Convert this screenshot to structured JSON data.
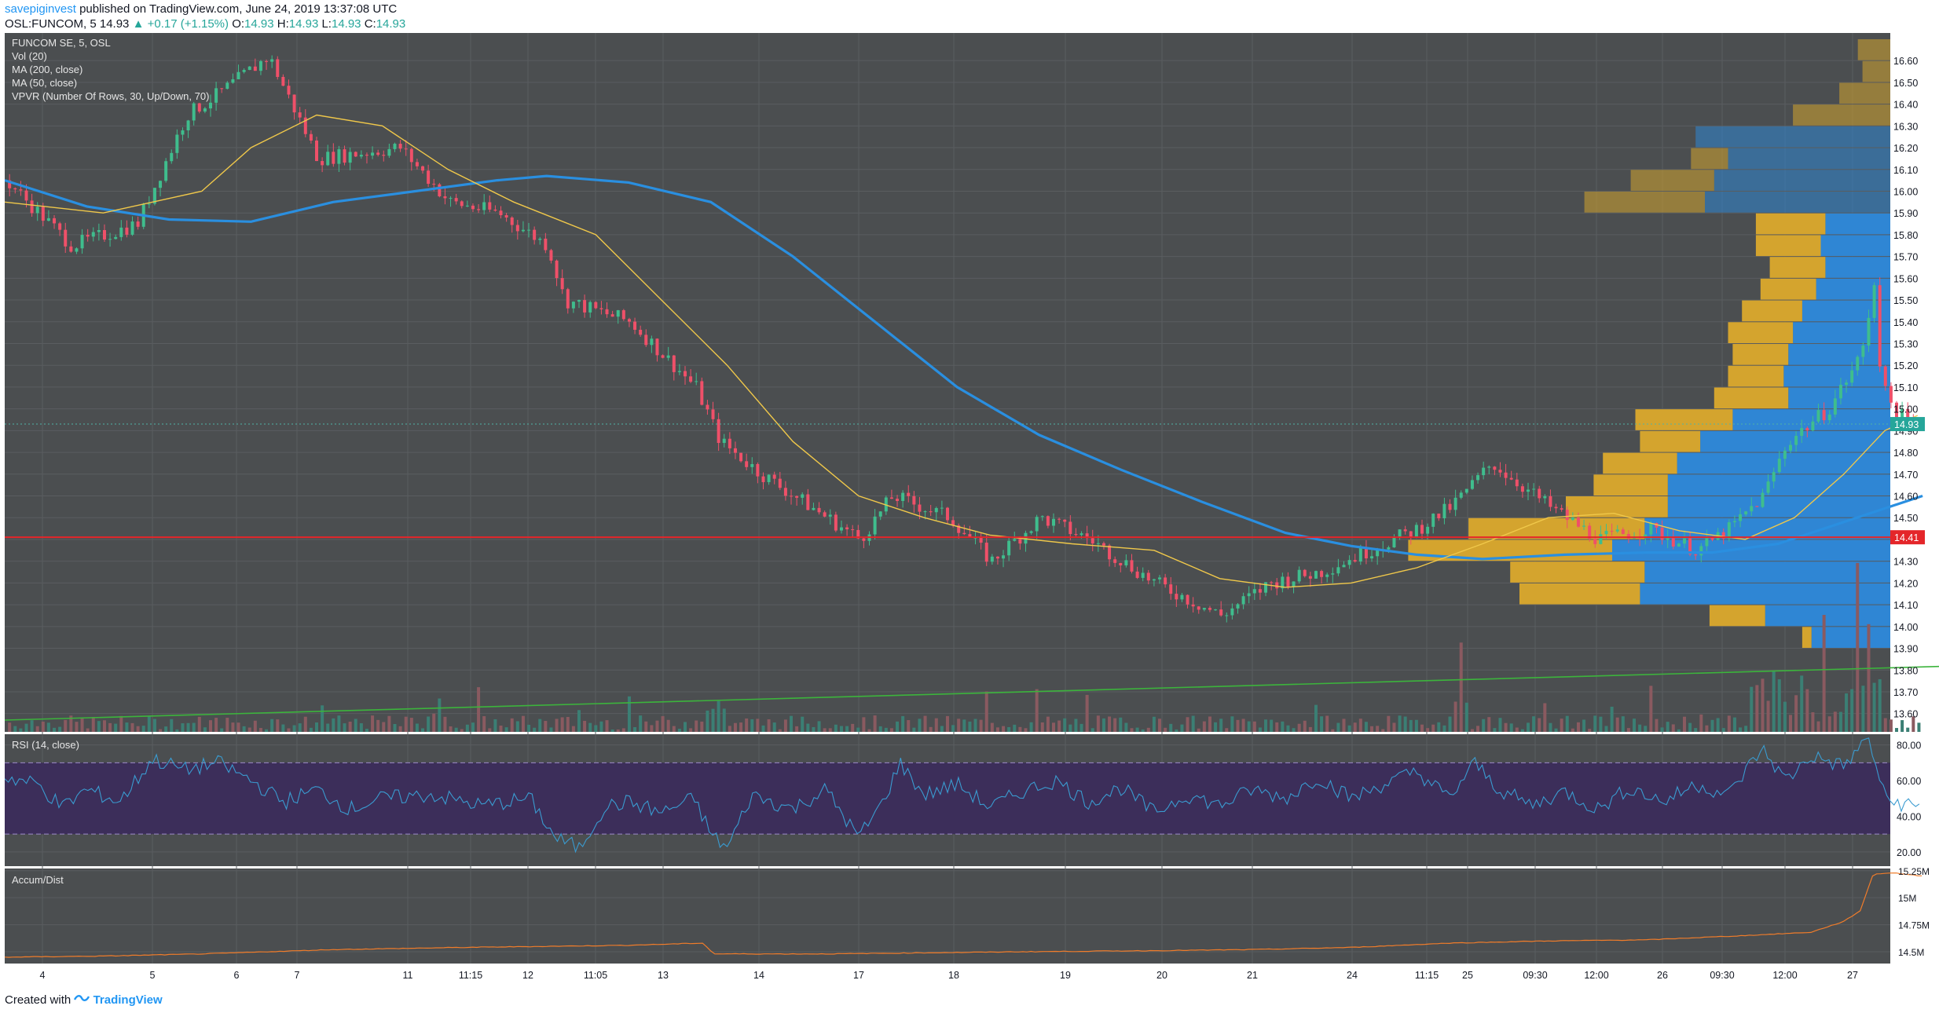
{
  "header": {
    "username": "savepiginvest",
    "published_text": "published on TradingView.com, June 24, 2019 13:37:08 UTC",
    "symbol": "OSL:FUNCOM, 5",
    "last": "14.93",
    "arrow": "▲",
    "change": "+0.17 (+1.15%)",
    "o_label": "O:",
    "o": "14.93",
    "h_label": "H:",
    "h": "14.93",
    "l_label": "L:",
    "l": "14.93",
    "c_label": "C:",
    "c": "14.93"
  },
  "legend": {
    "title": "FUNCOM SE, 5, OSL",
    "vol": "Vol (20)",
    "ma200": "MA (200, close)",
    "ma50": "MA (50, close)",
    "vpvr": "VPVR (Number Of Rows, 30, Up/Down, 70)"
  },
  "panes": {
    "rsi_title": "RSI (14, close)",
    "accum_title": "Accum/Dist"
  },
  "footer": {
    "created_with": "Created with",
    "brand": "TradingView"
  },
  "colors": {
    "background": "#4b4e50",
    "grid": "#5a5d60",
    "candle_up": "#3fbd8d",
    "candle_down": "#ef5069",
    "ma50": "#f0c84a",
    "ma200": "#2a8fe0",
    "hline": "#e4262a",
    "trendline": "#3cb43c",
    "rsi_band": "#3c2e5a",
    "rsi_line": "#3a9bd0",
    "accum_line": "#f07c2a",
    "vpvr_up": "#2f86d4",
    "vpvr_down": "#d4a42e",
    "price_tag_last": "#26a69a",
    "price_tag_hline": "#e4262a"
  },
  "chart_data": [
    {
      "type": "candlestick",
      "title": "FUNCOM SE, 5, OSL",
      "y_ticks": [
        "16.60",
        "16.50",
        "16.40",
        "16.30",
        "16.20",
        "16.10",
        "16.00",
        "15.90",
        "15.80",
        "15.70",
        "15.60",
        "15.50",
        "15.40",
        "15.30",
        "15.20",
        "15.10",
        "15.00",
        "14.90",
        "14.80",
        "14.70",
        "14.60",
        "14.50",
        "14.40",
        "14.30",
        "14.20",
        "14.10",
        "14.00",
        "13.90",
        "13.80",
        "13.70",
        "13.60"
      ],
      "ylim": [
        13.57,
        16.68
      ],
      "x_ticks": [
        "4",
        "5",
        "6",
        "7",
        "11",
        "11:15",
        "12",
        "11:05",
        "13",
        "14",
        "17",
        "18",
        "19",
        "20",
        "21",
        "24",
        "11:15",
        "25",
        "09:30",
        "12:00",
        "26",
        "09:30",
        "12:00",
        "27"
      ],
      "last_price": "14.93",
      "last_price_value": 14.93,
      "horizontal_line": "14.41",
      "horizontal_line_value": 14.41,
      "price_path": [
        [
          0,
          16.05
        ],
        [
          40,
          15.75
        ],
        [
          80,
          15.85
        ],
        [
          110,
          16.35
        ],
        [
          130,
          16.45
        ],
        [
          160,
          16.62
        ],
        [
          190,
          16.15
        ],
        [
          240,
          16.2
        ],
        [
          270,
          15.95
        ],
        [
          300,
          15.9
        ],
        [
          330,
          15.75
        ],
        [
          340,
          15.5
        ],
        [
          380,
          15.4
        ],
        [
          420,
          15.1
        ],
        [
          435,
          14.85
        ],
        [
          460,
          14.7
        ],
        [
          500,
          14.5
        ],
        [
          520,
          14.4
        ],
        [
          540,
          14.6
        ],
        [
          575,
          14.5
        ],
        [
          600,
          14.3
        ],
        [
          630,
          14.5
        ],
        [
          660,
          14.4
        ],
        [
          700,
          14.2
        ],
        [
          740,
          14.05
        ],
        [
          770,
          14.2
        ],
        [
          800,
          14.25
        ],
        [
          830,
          14.35
        ],
        [
          860,
          14.45
        ],
        [
          880,
          14.55
        ],
        [
          905,
          14.75
        ],
        [
          940,
          14.55
        ],
        [
          970,
          14.4
        ],
        [
          1000,
          14.45
        ],
        [
          1030,
          14.35
        ],
        [
          1050,
          14.45
        ],
        [
          1070,
          14.6
        ],
        [
          1085,
          14.85
        ],
        [
          1110,
          15.0
        ],
        [
          1130,
          15.25
        ],
        [
          1138,
          15.6
        ],
        [
          1142,
          15.1
        ],
        [
          1150,
          15.0
        ],
        [
          1160,
          14.93
        ]
      ],
      "ma50": [
        [
          0,
          15.95
        ],
        [
          60,
          15.9
        ],
        [
          120,
          16.0
        ],
        [
          150,
          16.2
        ],
        [
          190,
          16.35
        ],
        [
          230,
          16.3
        ],
        [
          270,
          16.1
        ],
        [
          310,
          15.95
        ],
        [
          360,
          15.8
        ],
        [
          400,
          15.5
        ],
        [
          440,
          15.2
        ],
        [
          480,
          14.85
        ],
        [
          520,
          14.6
        ],
        [
          560,
          14.5
        ],
        [
          600,
          14.42
        ],
        [
          650,
          14.38
        ],
        [
          700,
          14.35
        ],
        [
          740,
          14.22
        ],
        [
          780,
          14.18
        ],
        [
          820,
          14.2
        ],
        [
          860,
          14.27
        ],
        [
          900,
          14.38
        ],
        [
          940,
          14.5
        ],
        [
          980,
          14.52
        ],
        [
          1020,
          14.44
        ],
        [
          1060,
          14.4
        ],
        [
          1090,
          14.5
        ],
        [
          1120,
          14.7
        ],
        [
          1145,
          14.9
        ],
        [
          1165,
          14.97
        ]
      ],
      "ma200": [
        [
          0,
          16.05
        ],
        [
          50,
          15.93
        ],
        [
          100,
          15.87
        ],
        [
          150,
          15.86
        ],
        [
          200,
          15.95
        ],
        [
          250,
          16.0
        ],
        [
          300,
          16.05
        ],
        [
          330,
          16.07
        ],
        [
          380,
          16.04
        ],
        [
          430,
          15.95
        ],
        [
          480,
          15.7
        ],
        [
          530,
          15.4
        ],
        [
          580,
          15.1
        ],
        [
          630,
          14.88
        ],
        [
          680,
          14.72
        ],
        [
          730,
          14.57
        ],
        [
          780,
          14.43
        ],
        [
          820,
          14.37
        ],
        [
          860,
          14.33
        ],
        [
          900,
          14.31
        ],
        [
          950,
          14.33
        ],
        [
          1000,
          14.34
        ],
        [
          1040,
          14.34
        ],
        [
          1080,
          14.38
        ],
        [
          1120,
          14.48
        ],
        [
          1168,
          14.6
        ]
      ],
      "trendline": [
        [
          0,
          13.57
        ],
        [
          1530,
          13.89
        ]
      ],
      "vpvr_rows": [
        {
          "price": 16.65,
          "up": 0.0,
          "down": 0.07
        },
        {
          "price": 16.55,
          "up": 0.0,
          "down": 0.06
        },
        {
          "price": 16.45,
          "up": 0.0,
          "down": 0.11
        },
        {
          "price": 16.35,
          "up": 0.0,
          "down": 0.21
        },
        {
          "price": 16.25,
          "up": 0.42,
          "down": 0.0
        },
        {
          "price": 16.15,
          "up": 0.35,
          "down": 0.08
        },
        {
          "price": 16.05,
          "up": 0.38,
          "down": 0.18
        },
        {
          "price": 15.95,
          "up": 0.4,
          "down": 0.26
        },
        {
          "price": 15.85,
          "up": 0.14,
          "down": 0.15
        },
        {
          "price": 15.75,
          "up": 0.15,
          "down": 0.14
        },
        {
          "price": 15.65,
          "up": 0.14,
          "down": 0.12
        },
        {
          "price": 15.55,
          "up": 0.16,
          "down": 0.12
        },
        {
          "price": 15.45,
          "up": 0.19,
          "down": 0.13
        },
        {
          "price": 15.35,
          "up": 0.21,
          "down": 0.14
        },
        {
          "price": 15.25,
          "up": 0.22,
          "down": 0.12
        },
        {
          "price": 15.15,
          "up": 0.23,
          "down": 0.12
        },
        {
          "price": 15.05,
          "up": 0.22,
          "down": 0.16
        },
        {
          "price": 14.95,
          "up": 0.34,
          "down": 0.21
        },
        {
          "price": 14.85,
          "up": 0.41,
          "down": 0.13
        },
        {
          "price": 14.75,
          "up": 0.46,
          "down": 0.16
        },
        {
          "price": 14.65,
          "up": 0.48,
          "down": 0.16
        },
        {
          "price": 14.55,
          "up": 0.48,
          "down": 0.22
        },
        {
          "price": 14.45,
          "up": 0.53,
          "down": 0.38
        },
        {
          "price": 14.35,
          "up": 0.6,
          "down": 0.44
        },
        {
          "price": 14.25,
          "up": 0.53,
          "down": 0.29
        },
        {
          "price": 14.15,
          "up": 0.54,
          "down": 0.26
        },
        {
          "price": 14.05,
          "up": 0.27,
          "down": 0.12
        },
        {
          "price": 13.95,
          "up": 0.17,
          "down": 0.02
        }
      ]
    },
    {
      "type": "line",
      "title": "RSI (14, close)",
      "y_ticks": [
        "80.00",
        "60.00",
        "40.00",
        "20.00"
      ],
      "ylim": [
        12,
        86
      ],
      "bands": [
        30,
        70
      ],
      "points": [
        [
          0,
          62
        ],
        [
          20,
          58
        ],
        [
          35,
          45
        ],
        [
          50,
          55
        ],
        [
          70,
          48
        ],
        [
          90,
          72
        ],
        [
          110,
          66
        ],
        [
          130,
          70
        ],
        [
          150,
          60
        ],
        [
          170,
          48
        ],
        [
          190,
          55
        ],
        [
          210,
          44
        ],
        [
          230,
          50
        ],
        [
          260,
          52
        ],
        [
          290,
          46
        ],
        [
          320,
          50
        ],
        [
          335,
          28
        ],
        [
          350,
          22
        ],
        [
          365,
          45
        ],
        [
          380,
          48
        ],
        [
          400,
          42
        ],
        [
          420,
          50
        ],
        [
          430,
          30
        ],
        [
          440,
          22
        ],
        [
          455,
          52
        ],
        [
          480,
          44
        ],
        [
          500,
          55
        ],
        [
          520,
          28
        ],
        [
          535,
          48
        ],
        [
          545,
          70
        ],
        [
          560,
          52
        ],
        [
          580,
          58
        ],
        [
          600,
          45
        ],
        [
          620,
          54
        ],
        [
          640,
          60
        ],
        [
          660,
          48
        ],
        [
          680,
          56
        ],
        [
          700,
          42
        ],
        [
          720,
          52
        ],
        [
          740,
          46
        ],
        [
          760,
          55
        ],
        [
          780,
          50
        ],
        [
          800,
          62
        ],
        [
          820,
          50
        ],
        [
          840,
          58
        ],
        [
          860,
          65
        ],
        [
          880,
          50
        ],
        [
          895,
          70
        ],
        [
          910,
          55
        ],
        [
          930,
          46
        ],
        [
          950,
          54
        ],
        [
          970,
          44
        ],
        [
          990,
          56
        ],
        [
          1010,
          48
        ],
        [
          1030,
          58
        ],
        [
          1050,
          52
        ],
        [
          1070,
          78
        ],
        [
          1085,
          60
        ],
        [
          1100,
          74
        ],
        [
          1120,
          68
        ],
        [
          1135,
          84
        ],
        [
          1145,
          50
        ],
        [
          1155,
          47
        ],
        [
          1168,
          45
        ]
      ]
    },
    {
      "type": "line",
      "title": "Accum/Dist",
      "y_ticks": [
        "15.25M",
        "15M",
        "14.75M",
        "14.5M"
      ],
      "ylim": [
        14.42,
        15.27
      ],
      "points": [
        [
          0,
          14.45
        ],
        [
          60,
          14.46
        ],
        [
          120,
          14.48
        ],
        [
          200,
          14.52
        ],
        [
          280,
          14.54
        ],
        [
          330,
          14.55
        ],
        [
          380,
          14.56
        ],
        [
          425,
          14.58
        ],
        [
          432,
          14.48
        ],
        [
          500,
          14.48
        ],
        [
          560,
          14.49
        ],
        [
          620,
          14.5
        ],
        [
          700,
          14.51
        ],
        [
          760,
          14.52
        ],
        [
          820,
          14.54
        ],
        [
          880,
          14.58
        ],
        [
          940,
          14.6
        ],
        [
          1000,
          14.61
        ],
        [
          1060,
          14.65
        ],
        [
          1100,
          14.68
        ],
        [
          1120,
          14.78
        ],
        [
          1130,
          14.88
        ],
        [
          1138,
          15.22
        ],
        [
          1150,
          15.23
        ],
        [
          1168,
          15.2
        ]
      ]
    }
  ]
}
